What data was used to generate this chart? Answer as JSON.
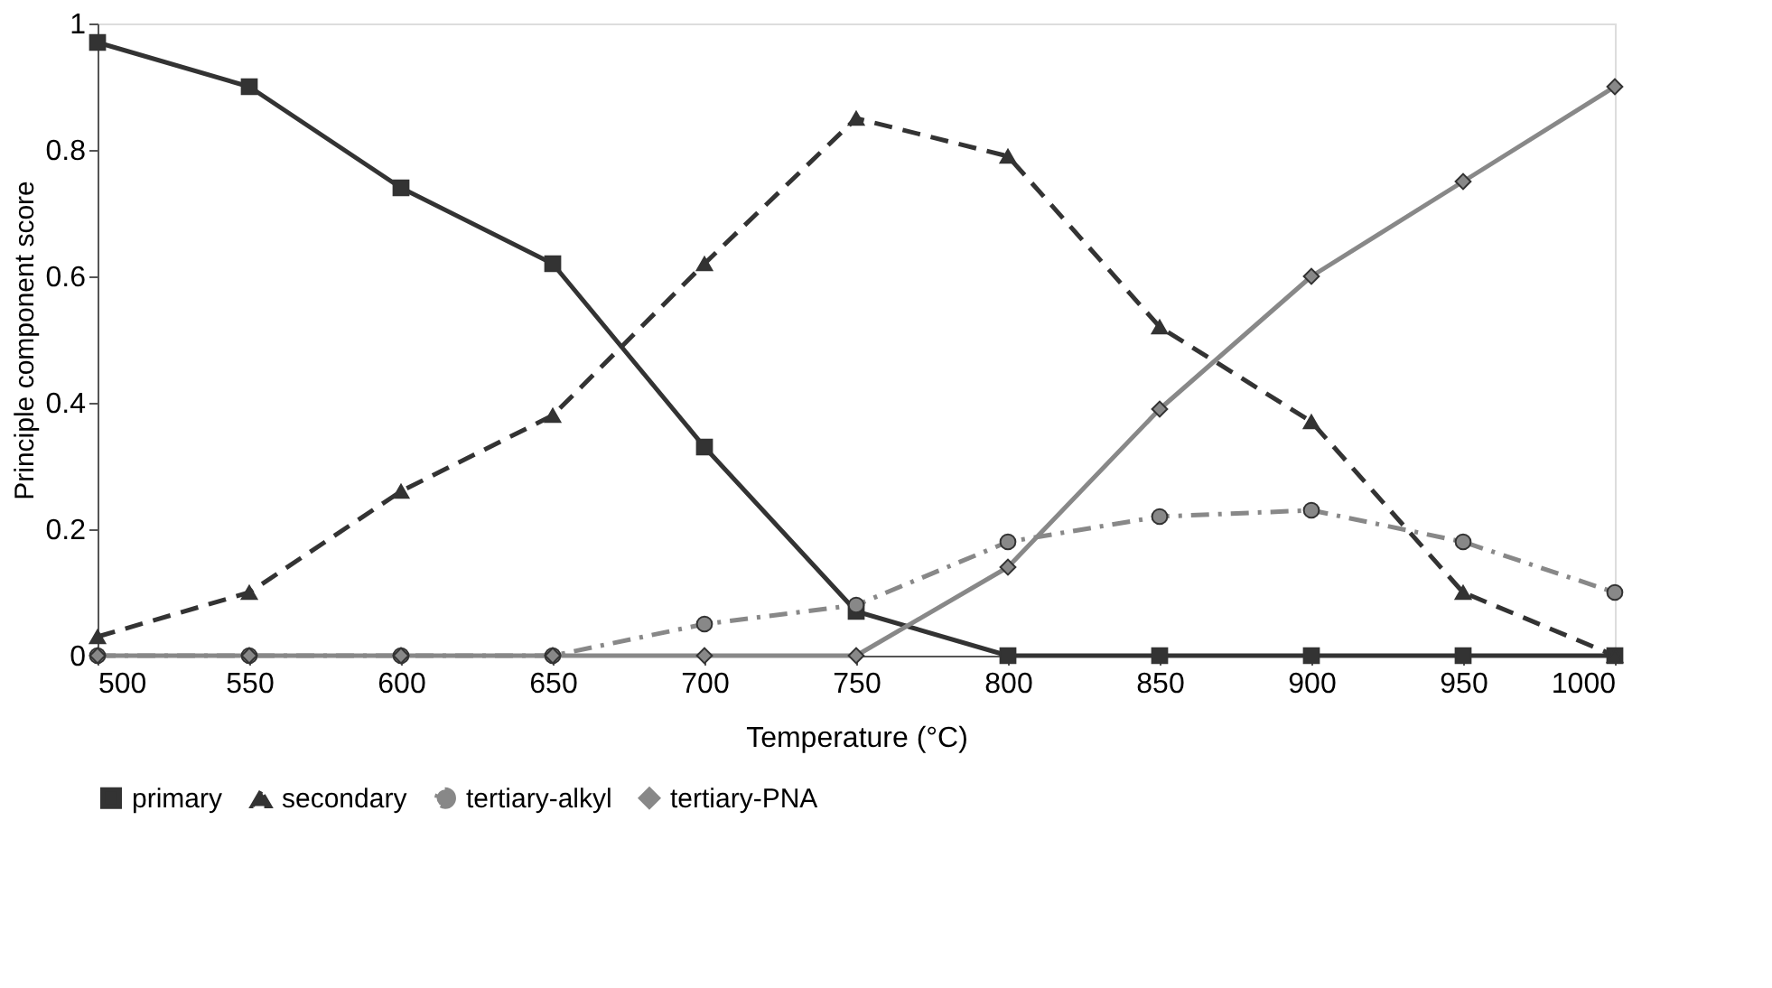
{
  "chart_data": {
    "type": "line",
    "xlabel": "Temperature (°C)",
    "ylabel": "Principle component score",
    "x": [
      500,
      550,
      600,
      650,
      700,
      750,
      800,
      850,
      900,
      950,
      1000
    ],
    "xlim": [
      500,
      1000
    ],
    "xticks": [
      500,
      550,
      600,
      650,
      700,
      750,
      800,
      850,
      900,
      950,
      1000
    ],
    "ylim": [
      0,
      1
    ],
    "yticks": [
      0,
      0.2,
      0.4,
      0.6,
      0.8,
      1
    ],
    "grid": false,
    "legend": "bottom",
    "series": [
      {
        "name": "primary",
        "color": "#333333",
        "marker": "square",
        "line_style": "solid",
        "values": [
          0.97,
          0.9,
          0.74,
          0.62,
          0.33,
          0.07,
          0,
          0,
          0,
          0,
          0
        ]
      },
      {
        "name": "secondary",
        "color": "#333333",
        "marker": "triangle",
        "line_style": "dashed",
        "values": [
          0.03,
          0.1,
          0.26,
          0.38,
          0.62,
          0.85,
          0.79,
          0.52,
          0.37,
          0.1,
          0
        ]
      },
      {
        "name": "tertiary-alkyl",
        "color": "#888888",
        "marker": "circle",
        "line_style": "dashdot",
        "values": [
          0,
          0,
          0,
          0,
          0.05,
          0.08,
          0.18,
          0.22,
          0.23,
          0.18,
          0.1
        ]
      },
      {
        "name": "tertiary-PNA",
        "color": "#888888",
        "marker": "diamond",
        "line_style": "solid",
        "values": [
          0,
          0,
          0,
          0,
          0,
          0,
          0.14,
          0.39,
          0.6,
          0.75,
          0.9
        ]
      }
    ]
  }
}
